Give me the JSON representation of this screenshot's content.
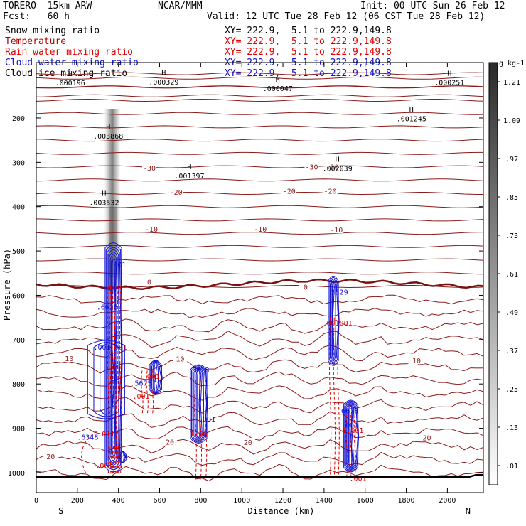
{
  "header": {
    "model": "TORERO  15km ARW",
    "org": "NCAR/MMM",
    "init": "Init: 00 UTC Sun 26 Feb 12",
    "fcst": "Fcst:   60 h",
    "valid": "Valid: 12 UTC Tue 28 Feb 12 (06 CST Tue 28 Feb 12)"
  },
  "fields": [
    {
      "name": "Snow mixing ratio",
      "color": "#000000",
      "xy": "XY= 222.9,  5.1 to 222.9,149.8"
    },
    {
      "name": "Temperature",
      "color": "#b00000",
      "xy": "XY= 222.9,  5.1 to 222.9,149.8"
    },
    {
      "name": "Rain water mixing ratio",
      "color": "#e00000",
      "xy": "XY= 222.9,  5.1 to 222.9,149.8"
    },
    {
      "name": "Cloud water mixing ratio",
      "color": "#1010d0",
      "xy": "XY= 222.9,  5.1 to 222.9,149.8"
    },
    {
      "name": "Cloud ice mixing ratio",
      "color": "#000000",
      "xy": "XY= 222.9,  5.1 to 222.9,149.8"
    }
  ],
  "colors": {
    "temperature": "#8b1a1a",
    "rain": "#e00000",
    "cloud_water": "#1010d0",
    "ice": "#000000"
  },
  "chart_data": {
    "type": "cross-section",
    "xlabel": "Distance (km)",
    "ylabel": "Pressure (hPa)",
    "xlim": [
      0,
      2175
    ],
    "ylim": [
      1045,
      75
    ],
    "x_ticks": [
      0,
      200,
      400,
      600,
      800,
      1000,
      1200,
      1400,
      1600,
      1800,
      2000
    ],
    "y_ticks": [
      200,
      300,
      400,
      500,
      600,
      700,
      800,
      900,
      1000
    ],
    "end_labels": {
      "left": "S",
      "right": "N"
    },
    "colorbar": {
      "unit": "g kg-1",
      "ticks": [
        ".01",
        ".13",
        ".25",
        ".37",
        ".49",
        ".61",
        ".73",
        ".85",
        ".97",
        "1.09",
        "1.21"
      ],
      "range": [
        0,
        1.33
      ]
    },
    "isotherm_labels": [
      {
        "x": 550,
        "p": 570,
        "text": "0"
      },
      {
        "x": 1310,
        "p": 581,
        "text": "0"
      },
      {
        "x": 560,
        "p": 450,
        "text": "-10"
      },
      {
        "x": 1090,
        "p": 450,
        "text": "-10"
      },
      {
        "x": 1460,
        "p": 452,
        "text": "-10"
      },
      {
        "x": 680,
        "p": 367,
        "text": "-20"
      },
      {
        "x": 1230,
        "p": 364,
        "text": "-20"
      },
      {
        "x": 1430,
        "p": 364,
        "text": "-20"
      },
      {
        "x": 550,
        "p": 312,
        "text": "-30"
      },
      {
        "x": 1340,
        "p": 310,
        "text": "-30"
      },
      {
        "x": 1440,
        "p": 310,
        "text": "-30"
      },
      {
        "x": 160,
        "p": 742,
        "text": "10"
      },
      {
        "x": 700,
        "p": 743,
        "text": "10"
      },
      {
        "x": 1850,
        "p": 747,
        "text": "10"
      },
      {
        "x": 650,
        "p": 930,
        "text": "20"
      },
      {
        "x": 1030,
        "p": 931,
        "text": "20"
      },
      {
        "x": 1900,
        "p": 921,
        "text": "20"
      },
      {
        "x": 70,
        "p": 963,
        "text": "20"
      }
    ],
    "hilo_labels": [
      {
        "x": 165,
        "p": 120,
        "H": "H",
        "val": ".000196"
      },
      {
        "x": 620,
        "p": 118,
        "H": "H",
        "val": ".000329"
      },
      {
        "x": 1175,
        "p": 133,
        "H": "H",
        "val": ".000047"
      },
      {
        "x": 2010,
        "p": 119,
        "H": "H",
        "val": ".000251"
      },
      {
        "x": 1825,
        "p": 201,
        "H": "H",
        "val": ".001245"
      },
      {
        "x": 350,
        "p": 240,
        "H": "H",
        "val": ".003868"
      },
      {
        "x": 1465,
        "p": 313,
        "H": "H",
        "val": ".002039"
      },
      {
        "x": 745,
        "p": 330,
        "H": "H",
        "val": ".001397"
      },
      {
        "x": 330,
        "p": 390,
        "H": "H",
        "val": ".003532"
      }
    ],
    "cloud_labels": [
      {
        "x": 395,
        "p": 530,
        "text": ".001",
        "color": "#1010d0"
      },
      {
        "x": 345,
        "p": 626,
        "text": ".6628",
        "color": "#1010d0"
      },
      {
        "x": 320,
        "p": 716,
        "text": ".001",
        "color": "#1010d0"
      },
      {
        "x": 400,
        "p": 716,
        "text": ".001",
        "color": "#e00000"
      },
      {
        "x": 510,
        "p": 797,
        "text": ".5675",
        "color": "#1010d0"
      },
      {
        "x": 570,
        "p": 782,
        "text": "001",
        "color": "#e00000"
      },
      {
        "x": 510,
        "p": 827,
        "text": ".001",
        "color": "#e00000"
      },
      {
        "x": 800,
        "p": 768,
        "text": "3828",
        "color": "#1010d0"
      },
      {
        "x": 830,
        "p": 878,
        "text": ".001",
        "color": "#1010d0"
      },
      {
        "x": 790,
        "p": 912,
        "text": "1286",
        "color": "#e00000"
      },
      {
        "x": 1475,
        "p": 592,
        "text": "3529",
        "color": "#1010d0"
      },
      {
        "x": 1475,
        "p": 662,
        "text": "001001",
        "color": "#e00000"
      },
      {
        "x": 1525,
        "p": 860,
        "text": "6678",
        "color": "#1010d0"
      },
      {
        "x": 1525,
        "p": 892,
        "text": ".001",
        "color": "#1010d0"
      },
      {
        "x": 1540,
        "p": 904,
        "text": "0.001",
        "color": "#e00000"
      },
      {
        "x": 1565,
        "p": 1012,
        "text": ".001",
        "color": "#e00000"
      },
      {
        "x": 250,
        "p": 919,
        "text": ".6348",
        "color": "#1010d0"
      },
      {
        "x": 350,
        "p": 912,
        "text": ".0117",
        "color": "#e00000"
      },
      {
        "x": 330,
        "p": 983,
        "text": ".001",
        "color": "#e00000"
      }
    ]
  }
}
